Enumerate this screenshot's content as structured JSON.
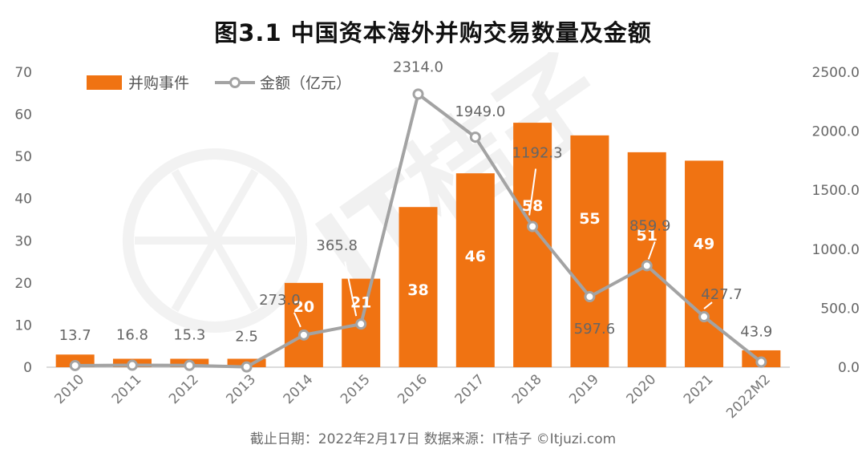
{
  "title": "图3.1  中国资本海外并购交易数量及金额",
  "source": "截止日期：2022年2月17日    数据来源：IT桔子 ©Itjuzi.com",
  "watermark": "IT桔子",
  "colors": {
    "bar": "#f07312",
    "line": "#a3a3a3",
    "axis": "#cfcfcf"
  },
  "chart_data": {
    "type": "bar+line",
    "categories": [
      "2010",
      "2011",
      "2012",
      "2013",
      "2014",
      "2015",
      "2016",
      "2017",
      "2018",
      "2019",
      "2020",
      "2021",
      "2022M2"
    ],
    "series": [
      {
        "name": "并购事件",
        "type": "bar",
        "axis": "left",
        "values": [
          3,
          2,
          2,
          2,
          20,
          21,
          38,
          46,
          58,
          55,
          51,
          49,
          4
        ],
        "labels": [
          "",
          "",
          "",
          "",
          "20",
          "21",
          "38",
          "46",
          "58",
          "55",
          "51",
          "49",
          ""
        ]
      },
      {
        "name": "金额（亿元）",
        "type": "line",
        "axis": "right",
        "values": [
          13.7,
          16.8,
          15.3,
          2.5,
          273.0,
          365.8,
          2314.0,
          1949.0,
          1192.3,
          597.6,
          859.9,
          427.7,
          43.9
        ],
        "labels": [
          "13.7",
          "16.8",
          "15.3",
          "2.5",
          "273.0",
          "365.8",
          "2314.0",
          "1949.0",
          "1192.3",
          "597.6",
          "859.9",
          "427.7",
          "43.9"
        ]
      }
    ],
    "y_left": {
      "min": 0,
      "max": 70,
      "ticks": [
        "0",
        "10",
        "20",
        "30",
        "40",
        "50",
        "60",
        "70"
      ]
    },
    "y_right": {
      "min": 0,
      "max": 2500,
      "ticks": [
        "0.0",
        "500.0",
        "1000.0",
        "1500.0",
        "2000.0",
        "2500.0"
      ]
    },
    "grid": false,
    "legend": "top-left"
  }
}
